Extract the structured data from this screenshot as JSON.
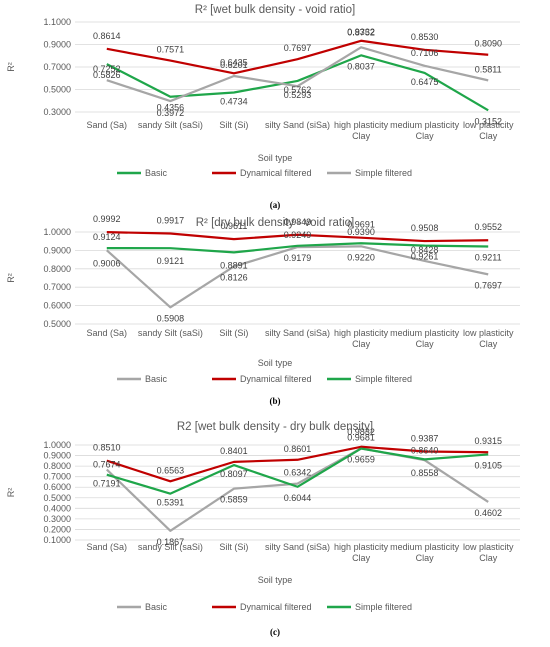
{
  "chart_data": [
    {
      "type": "line",
      "title": "R² [wet bulk density - void ratio]",
      "caption": "(a)",
      "xlabel": "Soil type",
      "ylabel": "R²",
      "ylim": [
        0.3,
        1.1
      ],
      "yticks": [
        "0.3000",
        "0.5000",
        "0.7000",
        "0.9000",
        "1.1000"
      ],
      "grid": true,
      "legend_position": "bottom",
      "categories": [
        "Sand (Sa)",
        "sandy Silt (saSi)",
        "Silt (Si)",
        "silty Sand (siSa)",
        "high plasticity Clay",
        "medium plasticity Clay",
        "low plasticity Clay"
      ],
      "series": [
        {
          "name": "Basic",
          "color": "#1fa64a",
          "values": [
            0.7252,
            0.4356,
            0.4734,
            0.5762,
            0.8037,
            0.6475,
            0.3152
          ],
          "labels": [
            "0.7252",
            "0.4356",
            "0.4734",
            "0.5762",
            "0.8037",
            "0.6475",
            "0.3152"
          ]
        },
        {
          "name": "Dynamical filtered",
          "color": "#c00000",
          "values": [
            0.8614,
            0.7571,
            0.6435,
            0.7697,
            0.9332,
            0.853,
            0.809
          ],
          "labels": [
            "0.8614",
            "0.7571",
            "0.6435",
            "0.7697",
            "0.9332",
            "0.8530",
            "0.8090"
          ]
        },
        {
          "name": "Simple filtered",
          "color": "#a6a6a6",
          "values": [
            0.5826,
            0.3972,
            0.6201,
            0.5293,
            0.8752,
            0.7106,
            0.5811
          ],
          "labels": [
            "0.5826",
            "0.3972",
            "0.6201",
            "0.5293",
            "0.8752",
            "0.7106",
            "0.5811"
          ]
        }
      ]
    },
    {
      "type": "line",
      "title": "R² [dry bulk density - void ratio]",
      "caption": "(b)",
      "xlabel": "Soil type",
      "ylabel": "R²",
      "ylim": [
        0.5,
        1.0
      ],
      "yticks": [
        "0.5000",
        "0.6000",
        "0.7000",
        "0.8000",
        "0.9000",
        "1.0000"
      ],
      "grid": true,
      "legend_position": "bottom",
      "categories": [
        "Sand (Sa)",
        "sandy Silt (saSi)",
        "Silt (Si)",
        "silty Sand (siSa)",
        "high plasticity Clay",
        "medium plasticity Clay",
        "low plasticity Clay"
      ],
      "series": [
        {
          "name": "Basic",
          "color": "#a6a6a6",
          "values": [
            0.9006,
            0.5908,
            0.8126,
            0.9179,
            0.922,
            0.8428,
            0.7697
          ],
          "labels": [
            "0.9006",
            "0.5908",
            "0.8126",
            "0.9179",
            "0.9220",
            "0.8428",
            "0.7697"
          ]
        },
        {
          "name": "Dynamical filtered",
          "color": "#c00000",
          "values": [
            0.9992,
            0.9917,
            0.9611,
            0.9849,
            0.9691,
            0.9508,
            0.9552
          ],
          "labels": [
            "0.9992",
            "0.9917",
            "0.9611",
            "0.9849",
            "0.9691",
            "0.9508",
            "0.9552"
          ]
        },
        {
          "name": "Simple filtered",
          "color": "#1fa64a",
          "values": [
            0.9124,
            0.9121,
            0.8891,
            0.9249,
            0.939,
            0.9261,
            0.9211
          ],
          "labels": [
            "0.9124",
            "0.9121",
            "0.8891",
            "0.9249",
            "0.9390",
            "0.9261",
            "0.9211"
          ]
        }
      ]
    },
    {
      "type": "line",
      "title": "R2 [wet bulk density - dry bulk density]",
      "caption": "(c)",
      "xlabel": "Soil type",
      "ylabel": "R²",
      "ylim": [
        0.1,
        1.0
      ],
      "yticks": [
        "0.1000",
        "0.2000",
        "0.3000",
        "0.4000",
        "0.5000",
        "0.6000",
        "0.7000",
        "0.8000",
        "0.9000",
        "1.0000"
      ],
      "grid": true,
      "legend_position": "bottom",
      "categories": [
        "Sand (Sa)",
        "sandy Silt (saSi)",
        "Silt (Si)",
        "silty Sand (siSa)",
        "high plasticity Clay",
        "medium plasticity Clay",
        "low plasticity Clay"
      ],
      "series": [
        {
          "name": "Basic",
          "color": "#a6a6a6",
          "values": [
            0.7674,
            0.1867,
            0.5859,
            0.6342,
            0.9681,
            0.8558,
            0.4602
          ],
          "labels": [
            "0.7674",
            "0.1867",
            "0.5859",
            "0.6342",
            "0.9681",
            "0.8558",
            "0.4602"
          ]
        },
        {
          "name": "Dynamical filtered",
          "color": "#c00000",
          "values": [
            0.851,
            0.6563,
            0.8401,
            0.8601,
            0.9832,
            0.9387,
            0.9315
          ],
          "labels": [
            "0.8510",
            "0.6563",
            "0.8401",
            "0.8601",
            "0.9832",
            "0.9387",
            "0.9315"
          ]
        },
        {
          "name": "Simple filtered",
          "color": "#1fa64a",
          "values": [
            0.7191,
            0.5391,
            0.8097,
            0.6044,
            0.9659,
            0.864,
            0.9105
          ],
          "labels": [
            "0.7191",
            "0.5391",
            "0.8097",
            "0.6044",
            "0.9659",
            "0.8640",
            "0.9105"
          ]
        }
      ]
    }
  ]
}
